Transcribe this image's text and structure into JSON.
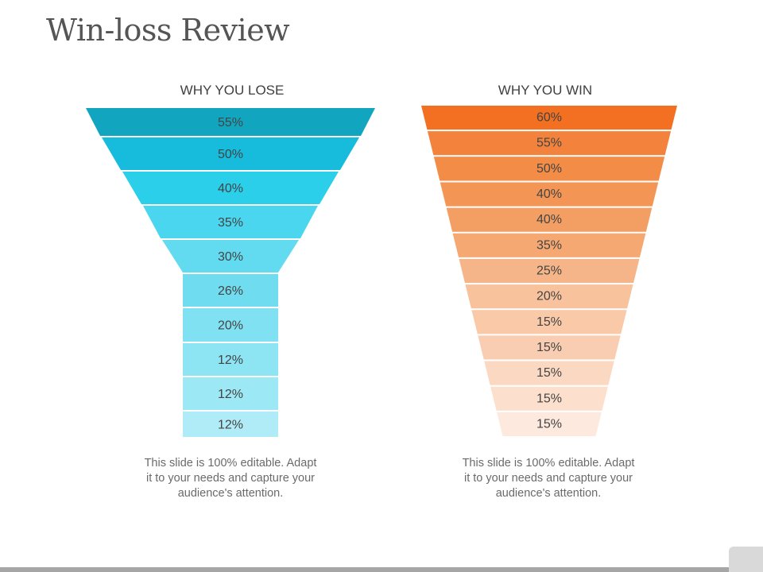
{
  "title": "Win-loss Review",
  "lose": {
    "heading": "WHY YOU LOSE",
    "values": [
      "55%",
      "50%",
      "40%",
      "35%",
      "30%",
      "26%",
      "20%",
      "12%",
      "12%",
      "12%"
    ],
    "caption": "This slide is 100% editable. Adapt it to your needs and capture your audience's attention.",
    "colors": [
      "#12a5bf",
      "#17bcdc",
      "#2ccfea",
      "#4ad6ee",
      "#62dbf0",
      "#70dcef",
      "#80e1f2",
      "#8de4f3",
      "#9de8f5",
      "#b0ecf7"
    ]
  },
  "win": {
    "heading": "WHY YOU WIN",
    "values": [
      "60%",
      "55%",
      "50%",
      "40%",
      "40%",
      "35%",
      "25%",
      "20%",
      "15%",
      "15%",
      "15%",
      "15%",
      "15%"
    ],
    "caption": "This slide is 100% editable. Adapt it to your needs and capture your audience's attention.",
    "colors": [
      "#f36f21",
      "#f3833c",
      "#f38c47",
      "#f39655",
      "#f39f63",
      "#f5a872",
      "#f6b588",
      "#f8c29c",
      "#f9c9a8",
      "#f9cdb1",
      "#fbd8c2",
      "#fcdfcd",
      "#fde9de"
    ]
  }
}
